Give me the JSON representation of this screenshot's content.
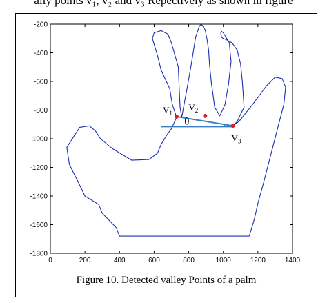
{
  "header_fragment": "ally points v₁, v₂ and v₃ Repectively as shown in figure",
  "caption": "Figure 10.  Detected valley Points of a palm",
  "chart_data": {
    "type": "scatter",
    "title": "",
    "xlabel": "",
    "ylabel": "",
    "xlim": [
      0,
      1400
    ],
    "ylim": [
      -1800,
      -200
    ],
    "xticks": [
      "0",
      "200",
      "400",
      "600",
      "800",
      "1000",
      "1200",
      "1400"
    ],
    "yticks": [
      "-200",
      "-400",
      "-600",
      "-800",
      "-1000",
      "-1200",
      "-1400",
      "-1600",
      "-1800"
    ],
    "grid": false,
    "points": [
      {
        "label": "V",
        "sub": "1",
        "x": 730,
        "y": -845
      },
      {
        "label": "V",
        "sub": "2",
        "x": 895,
        "y": -840
      },
      {
        "label": "V",
        "sub": "3",
        "x": 1055,
        "y": -910
      }
    ],
    "angle_label": "θ",
    "reference_line": {
      "x": [
        640,
        1055
      ],
      "y": [
        -915,
        -915
      ]
    },
    "join_line": {
      "x": [
        730,
        1055
      ],
      "y": [
        -845,
        -910
      ]
    },
    "palm_outline": {
      "x": [
        1150,
        400,
        380,
        300,
        280,
        200,
        160,
        110,
        95,
        170,
        225,
        260,
        290,
        360,
        470,
        570,
        620,
        640,
        670,
        700,
        730,
        705,
        690,
        640,
        620,
        600,
        590,
        600,
        640,
        680,
        700,
        740,
        745,
        750,
        760,
        770,
        790,
        815,
        840,
        860,
        870,
        880,
        895,
        905,
        915,
        920,
        930,
        950,
        980,
        1010,
        1030,
        1045,
        1040,
        1035,
        1010,
        1000,
        990,
        985,
        990,
        1000,
        1020,
        1050,
        1080,
        1100,
        1110,
        1120,
        1080,
        1055,
        1090,
        1170,
        1250,
        1300,
        1340,
        1360,
        1350,
        1320,
        1290,
        1260,
        1230,
        1200,
        1180,
        1160,
        1150
      ],
      "y": [
        -1680,
        -1680,
        -1620,
        -1520,
        -1460,
        -1400,
        -1300,
        -1180,
        -1060,
        -920,
        -910,
        -945,
        -1000,
        -1070,
        -1150,
        -1145,
        -1100,
        -1040,
        -980,
        -930,
        -850,
        -760,
        -650,
        -520,
        -420,
        -340,
        -300,
        -260,
        -245,
        -270,
        -330,
        -500,
        -650,
        -780,
        -850,
        -780,
        -650,
        -480,
        -290,
        -220,
        -200,
        -210,
        -240,
        -300,
        -380,
        -480,
        -600,
        -780,
        -840,
        -760,
        -620,
        -460,
        -400,
        -330,
        -280,
        -260,
        -250,
        -260,
        -290,
        -300,
        -310,
        -330,
        -380,
        -480,
        -600,
        -780,
        -880,
        -910,
        -880,
        -760,
        -630,
        -570,
        -580,
        -640,
        -760,
        -900,
        -1040,
        -1180,
        -1320,
        -1450,
        -1560,
        -1640,
        -1680
      ]
    }
  }
}
